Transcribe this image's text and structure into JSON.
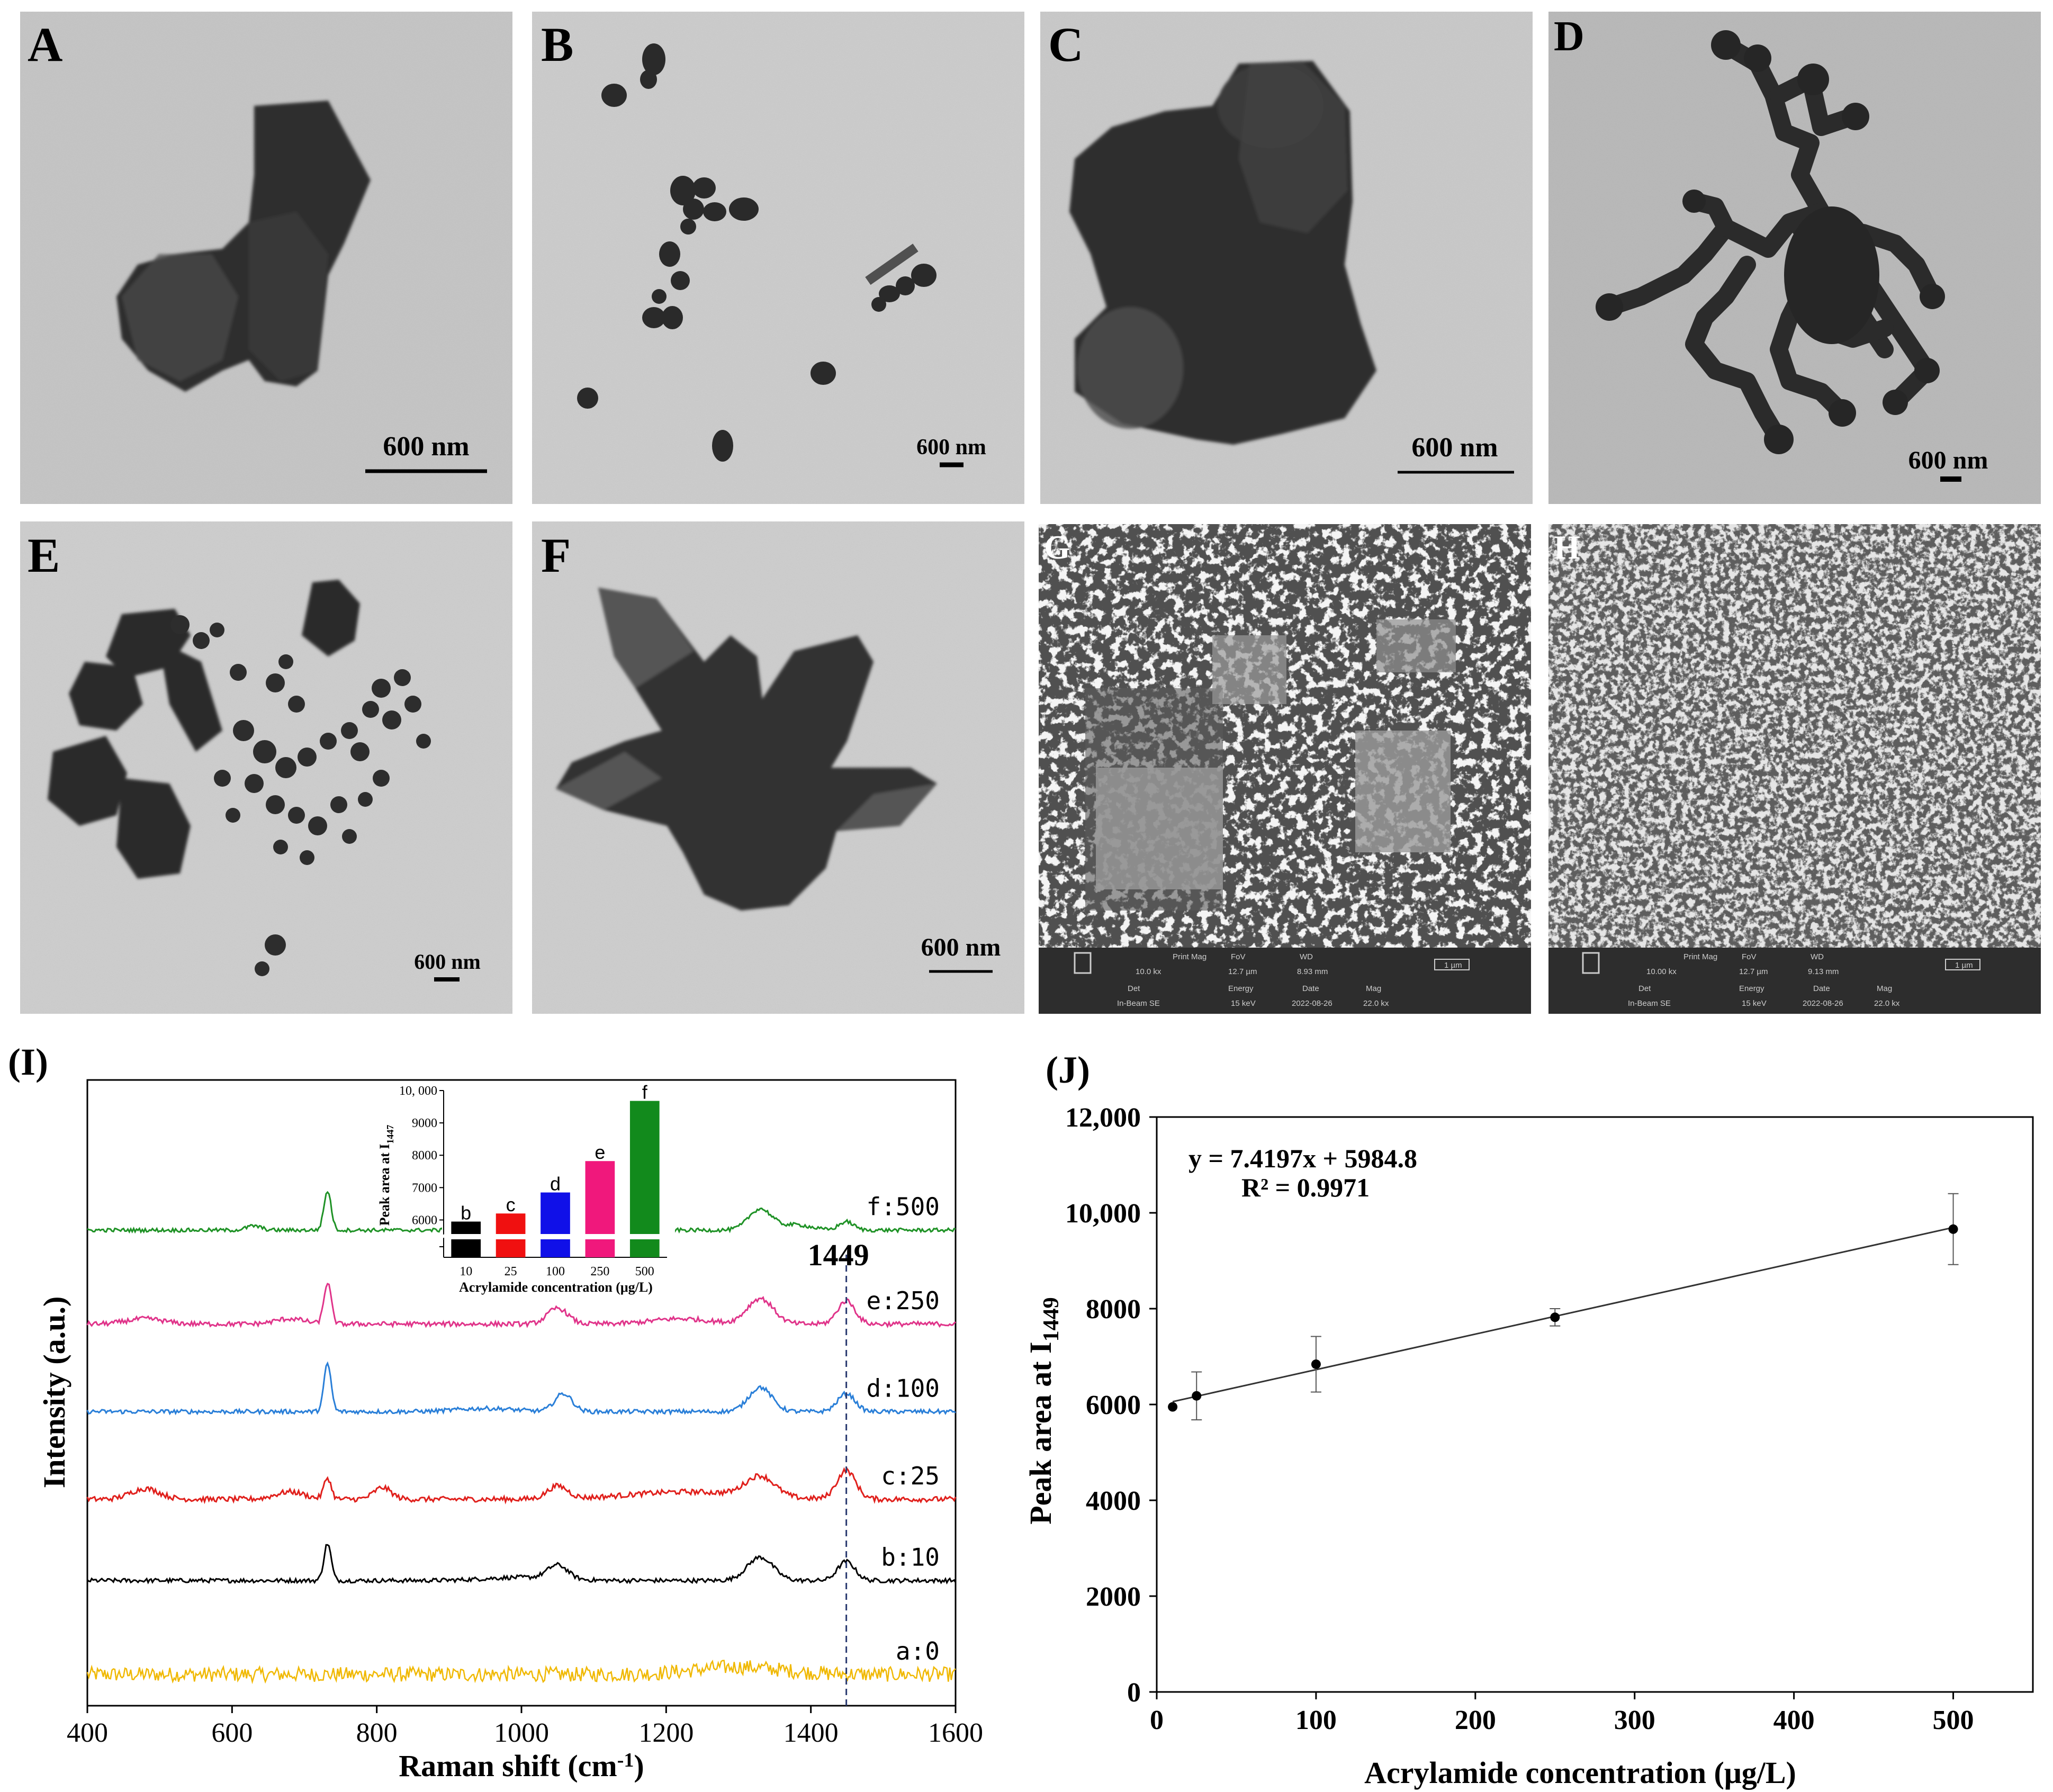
{
  "panels": [
    {
      "letter": "A",
      "scale": "600 nm"
    },
    {
      "letter": "B",
      "scale": "600 nm"
    },
    {
      "letter": "C",
      "scale": "600 nm"
    },
    {
      "letter": "D",
      "scale": "600 nm"
    },
    {
      "letter": "E",
      "scale": "600 nm"
    },
    {
      "letter": "F",
      "scale": "600 nm"
    },
    {
      "letter": "G",
      "sem": {
        "print_mag_label": "Print Mag",
        "print_mag": "10.0 kx",
        "fov_label": "FoV",
        "fov": "12.7 µm",
        "wd_label": "WD",
        "wd": "8.93 mm",
        "det_label": "Det",
        "det": "In-Beam SE",
        "energy_label": "Energy",
        "energy": "15 keV",
        "date_label": "Date",
        "date": "2022-08-26",
        "mag_label": "Mag",
        "mag": "22.0 kx",
        "scale": "1 µm"
      }
    },
    {
      "letter": "H",
      "sem": {
        "print_mag_label": "Print Mag",
        "print_mag": "10.00 kx",
        "fov_label": "FoV",
        "fov": "12.7 µm",
        "wd_label": "WD",
        "wd": "9.13 mm",
        "det_label": "Det",
        "det": "In-Beam SE",
        "energy_label": "Energy",
        "energy": "15 keV",
        "date_label": "Date",
        "date": "2022-08-26",
        "mag_label": "Mag",
        "mag": "22.0 kx",
        "scale": "1 µm"
      }
    }
  ],
  "chart_data": [
    {
      "panel": "(I)",
      "type": "line",
      "xlabel": "Raman shift (cm",
      "xlabel_sup": "-1",
      "xlabel_end": ")",
      "ylabel": "Intensity (a.u.)",
      "xlim": [
        400,
        1600
      ],
      "xticks": [
        "400",
        "600",
        "800",
        "1000",
        "1200",
        "1400",
        "1600"
      ],
      "marker_line": {
        "x": 1449,
        "label": "1449"
      },
      "series": [
        {
          "name": "a:0",
          "color": "#f0b800",
          "offset": 0.05
        },
        {
          "name": "b:10",
          "color": "#000000",
          "offset": 0.2
        },
        {
          "name": "c:25",
          "color": "#e0201c",
          "offset": 0.33
        },
        {
          "name": "d:100",
          "color": "#2a7fd8",
          "offset": 0.47
        },
        {
          "name": "e:250",
          "color": "#e0348a",
          "offset": 0.61
        },
        {
          "name": "f:500",
          "color": "#1f9226",
          "offset": 0.76
        }
      ],
      "peaks_cm": [
        732,
        1050,
        1330,
        1449
      ],
      "inset": {
        "type": "bar",
        "ylabel": "Peak area at I",
        "ylabel_sub": "1447",
        "xlabel": "Acrylamide concentration (μg/L)",
        "categories": [
          "10",
          "25",
          "100",
          "250",
          "500"
        ],
        "values": [
          5950,
          6200,
          6850,
          7820,
          9680
        ],
        "letters": [
          "b",
          "c",
          "d",
          "e",
          "f"
        ],
        "colors": [
          "#000000",
          "#f01010",
          "#1010e8",
          "#f0187c",
          "#128a1c"
        ],
        "yticks": [
          "6000",
          "7000",
          "8000",
          "9000",
          "10, 000"
        ],
        "ylim": [
          5500,
          10000
        ]
      }
    },
    {
      "panel": "(J)",
      "type": "scatter",
      "xlabel": "Acrylamide concentration (μg/L)",
      "ylabel": "Peak area at I",
      "ylabel_sub": "1449",
      "xlim": [
        0,
        550
      ],
      "ylim": [
        0,
        12000
      ],
      "xticks": [
        "0",
        "100",
        "200",
        "300",
        "400",
        "500"
      ],
      "yticks": [
        "0",
        "2000",
        "4000",
        "6000",
        "8000",
        "10,000",
        "12,000"
      ],
      "x": [
        10,
        25,
        100,
        250,
        500
      ],
      "y": [
        5950,
        6180,
        6840,
        7820,
        9660
      ],
      "error": [
        0,
        500,
        580,
        180,
        740
      ],
      "fit": {
        "slope": 7.4197,
        "intercept": 5984.8
      },
      "equation": "y = 7.4197x + 5984.8",
      "r2": "R² = 0.9971"
    }
  ]
}
